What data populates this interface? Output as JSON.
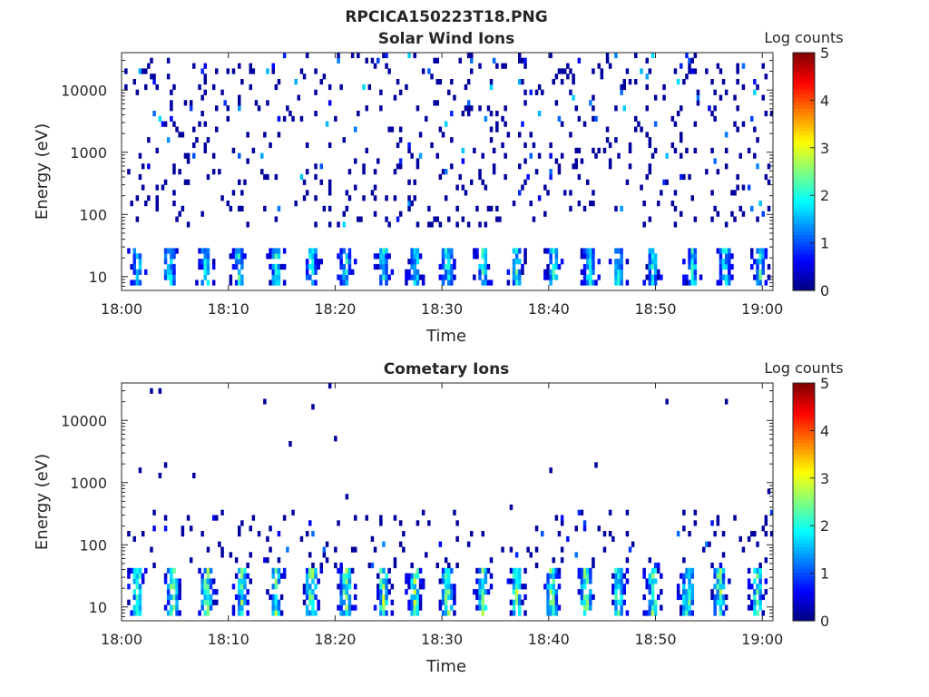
{
  "figure": {
    "title": "RPCICA150223T18.PNG"
  },
  "chart_data": [
    {
      "type": "heatmap",
      "title": "Solar Wind Ions",
      "xlabel": "Time",
      "ylabel": "Energy (eV)",
      "y_scale": "log",
      "ylim": [
        6,
        40000
      ],
      "xlim": [
        "18:00",
        "19:01"
      ],
      "x_ticks": [
        "18:00",
        "18:10",
        "18:20",
        "18:30",
        "18:40",
        "18:50",
        "19:00"
      ],
      "y_ticks": [
        "10",
        "100",
        "1000",
        "10000"
      ],
      "colorbar": {
        "label": "Log counts",
        "ticks": [
          "0",
          "1",
          "2",
          "3",
          "4",
          "5"
        ],
        "range": [
          0,
          5
        ],
        "colormap": "jet"
      },
      "description_values": {
        "background_level": 0.2,
        "low_energy_bursts_minutes": [
          1.5,
          4.5,
          7.9,
          11,
          14.5,
          17.8,
          21,
          24.5,
          27.5,
          30.5,
          33.8,
          37,
          40.5,
          43.8,
          46.5,
          49.8,
          53.5,
          56.5,
          59.8
        ],
        "low_energy_band_eV": [
          7,
          30
        ],
        "peak_log_counts": 2.5
      }
    },
    {
      "type": "heatmap",
      "title": "Cometary Ions",
      "xlabel": "Time",
      "ylabel": "Energy (eV)",
      "y_scale": "log",
      "ylim": [
        6,
        40000
      ],
      "xlim": [
        "18:00",
        "19:01"
      ],
      "x_ticks": [
        "18:00",
        "18:10",
        "18:20",
        "18:30",
        "18:40",
        "18:50",
        "19:00"
      ],
      "y_ticks": [
        "10",
        "100",
        "1000",
        "10000"
      ],
      "colorbar": {
        "label": "Log counts",
        "ticks": [
          "0",
          "1",
          "2",
          "3",
          "4",
          "5"
        ],
        "range": [
          0,
          5
        ],
        "colormap": "jet"
      },
      "description_values": {
        "low_energy_bursts_minutes": [
          1.5,
          4.8,
          8,
          11.3,
          14.5,
          17.8,
          21,
          24.5,
          27.5,
          30.5,
          33.8,
          37,
          40.3,
          43.5,
          46.5,
          49.8,
          53,
          56,
          59.5
        ],
        "low_energy_band_eV": [
          7,
          40
        ],
        "scatter_band_eV": [
          40,
          400
        ],
        "peak_log_counts": 3.2
      }
    }
  ]
}
